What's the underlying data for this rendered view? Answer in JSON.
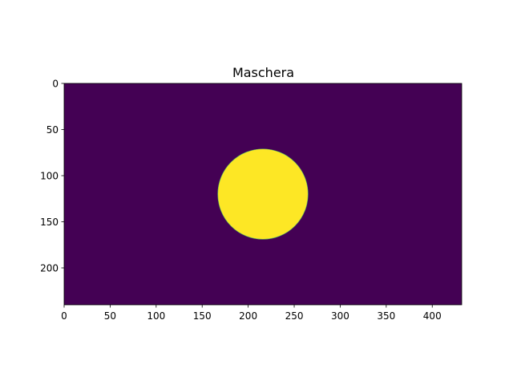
{
  "chart_data": {
    "type": "heatmap",
    "title": "Maschera",
    "xlabel": "",
    "ylabel": "",
    "image_shape": [
      240,
      432
    ],
    "xlim": [
      0,
      432
    ],
    "ylim": [
      240,
      0
    ],
    "y_axis_inverted": true,
    "x_ticks": [
      0,
      50,
      100,
      150,
      200,
      250,
      300,
      350,
      400
    ],
    "y_ticks": [
      0,
      50,
      100,
      150,
      200
    ],
    "x_tick_labels": [
      "0",
      "50",
      "100",
      "150",
      "200",
      "250",
      "300",
      "350",
      "400"
    ],
    "y_tick_labels": [
      "0",
      "50",
      "100",
      "150",
      "200"
    ],
    "mask": {
      "shape": "circle",
      "center_x": 216,
      "center_y": 120,
      "radius": 49,
      "value_inside": 1,
      "value_outside": 0
    },
    "colormap": "viridis",
    "colors": {
      "low": "#440154",
      "high": "#fde725",
      "edge": "#5ec962"
    },
    "grid": false,
    "legend": "none"
  }
}
